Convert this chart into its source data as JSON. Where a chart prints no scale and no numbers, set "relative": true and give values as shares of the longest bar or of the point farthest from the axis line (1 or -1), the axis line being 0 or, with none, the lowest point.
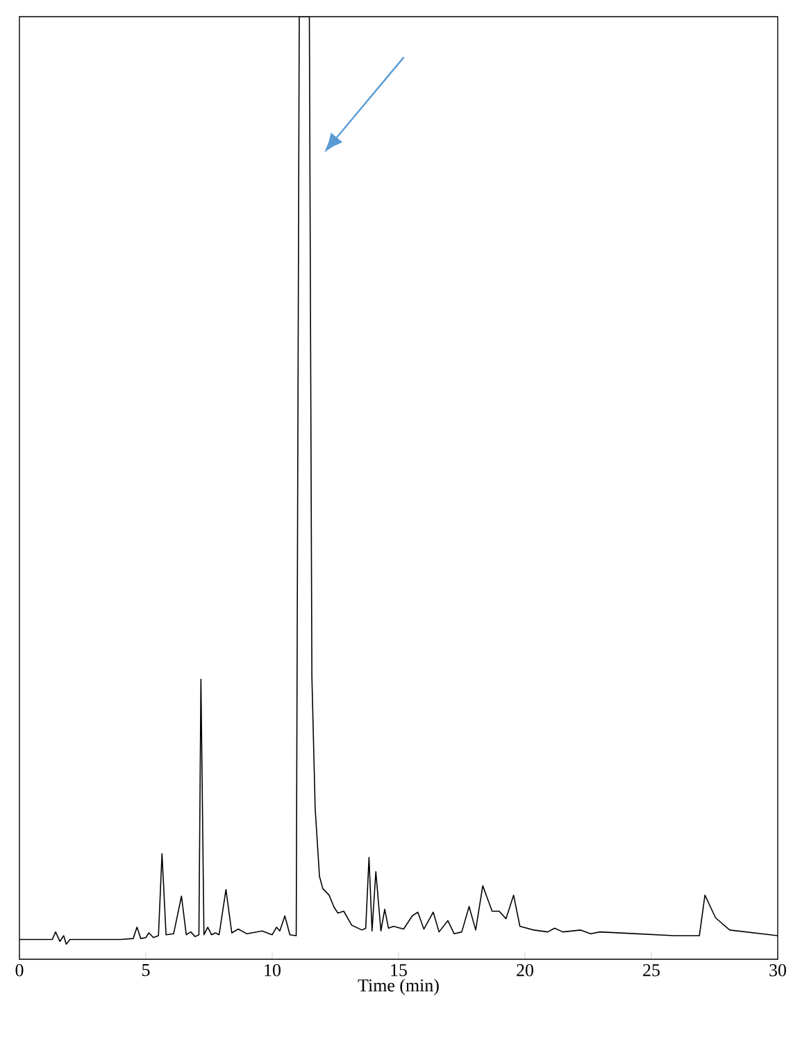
{
  "chart_data": {
    "type": "line",
    "xlabel": "Time (min)",
    "relative": true,
    "xlim": [
      0,
      30
    ],
    "xticks": [
      0,
      5,
      10,
      15,
      20,
      25,
      30
    ],
    "tick_labels": "x",
    "marker": "none",
    "line_style": "solid",
    "series": [
      {
        "color": "#000000",
        "x": [
          0,
          1.3,
          1.43,
          1.6,
          1.75,
          1.85,
          2.0,
          3.0,
          4.0,
          4.5,
          4.65,
          4.8,
          5.0,
          5.12,
          5.3,
          5.5,
          5.64,
          5.8,
          6.1,
          6.41,
          6.6,
          6.78,
          6.95,
          7.1,
          7.18,
          7.3,
          7.45,
          7.6,
          7.75,
          7.9,
          8.17,
          8.4,
          8.66,
          9.0,
          9.6,
          10.0,
          10.17,
          10.3,
          10.5,
          10.7,
          10.95,
          11.07,
          11.15,
          11.4,
          11.47,
          11.57,
          11.7,
          11.87,
          12.0,
          12.25,
          12.45,
          12.6,
          12.83,
          13.15,
          13.55,
          13.7,
          13.83,
          13.95,
          14.1,
          14.3,
          14.45,
          14.6,
          14.8,
          15.2,
          15.54,
          15.76,
          16.0,
          16.37,
          16.6,
          16.95,
          17.2,
          17.5,
          17.79,
          18.05,
          18.33,
          18.7,
          18.98,
          19.25,
          19.55,
          19.8,
          20.35,
          20.9,
          21.17,
          21.5,
          22.2,
          22.6,
          22.97,
          24.07,
          25.9,
          26.9,
          27.12,
          27.54,
          28.1,
          30
        ],
        "values": [
          0.021,
          0.021,
          0.029,
          0.019,
          0.025,
          0.016,
          0.021,
          0.021,
          0.021,
          0.022,
          0.034,
          0.022,
          0.023,
          0.028,
          0.023,
          0.025,
          0.112,
          0.026,
          0.027,
          0.067,
          0.026,
          0.029,
          0.024,
          0.026,
          0.297,
          0.026,
          0.034,
          0.026,
          0.028,
          0.026,
          0.074,
          0.028,
          0.032,
          0.027,
          0.03,
          0.026,
          0.034,
          0.03,
          0.046,
          0.026,
          0.025,
          1,
          1,
          1,
          1,
          0.3,
          0.16,
          0.088,
          0.075,
          0.068,
          0.055,
          0.049,
          0.051,
          0.036,
          0.031,
          0.033,
          0.108,
          0.03,
          0.093,
          0.03,
          0.053,
          0.033,
          0.035,
          0.032,
          0.046,
          0.05,
          0.032,
          0.05,
          0.029,
          0.041,
          0.027,
          0.029,
          0.056,
          0.031,
          0.078,
          0.051,
          0.051,
          0.043,
          0.068,
          0.035,
          0.031,
          0.029,
          0.033,
          0.029,
          0.031,
          0.027,
          0.029,
          0.0275,
          0.025,
          0.025,
          0.068,
          0.044,
          0.031,
          0.025
        ]
      }
    ]
  }
}
